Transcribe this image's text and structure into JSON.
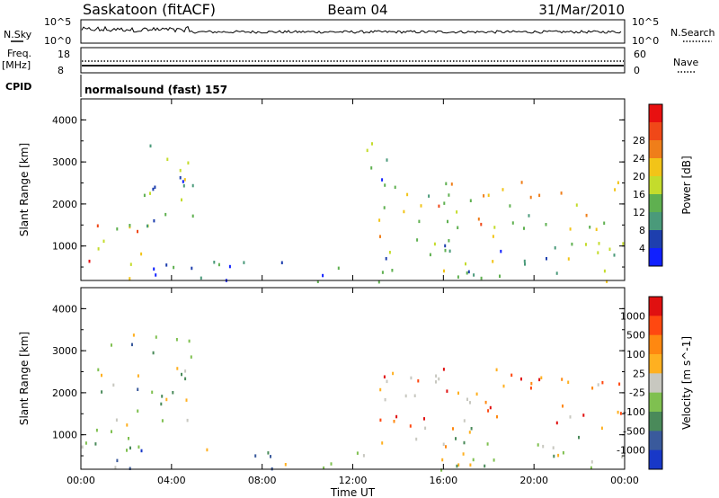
{
  "header": {
    "station": "Saskatoon (fitACF)",
    "beam": "Beam 04",
    "date": "31/Mar/2010"
  },
  "panels": {
    "nsky_label": "N.Sky",
    "nsearch_label": "N.Search",
    "nsky_ticks": [
      "10^5",
      "10^0"
    ],
    "freq_label": "Freq.",
    "freq_unit": "[MHz]",
    "freq_ticks": [
      "18",
      "8"
    ],
    "nave_label": "Nave",
    "nave_ticks": [
      "60",
      "0"
    ],
    "cpid_label": "CPID",
    "cpid_text": "normalsound (fast) 157"
  },
  "chart_data": [
    {
      "type": "heatmap",
      "quantity": "Power",
      "ylabel": "Slant Range [km]",
      "ylim": [
        180,
        4500
      ],
      "yticks": [
        1000,
        2000,
        3000,
        4000
      ],
      "xlim": [
        0,
        24
      ],
      "xticks": [
        "00:00",
        "04:00",
        "08:00",
        "12:00",
        "16:00",
        "20:00",
        "00:00"
      ],
      "colorbar": {
        "label": "Power [dB]",
        "ticks": [
          "4",
          "8",
          "12",
          "16",
          "20",
          "24",
          "28"
        ],
        "colors": [
          "#1020ff",
          "#1e3fae",
          "#4a9a7a",
          "#5fb050",
          "#c4dc2c",
          "#f2c418",
          "#ef7e1a",
          "#f04818",
          "#e81010"
        ]
      },
      "regions": [
        {
          "t": [
            0,
            3.2
          ],
          "r": [
            180,
            1200
          ],
          "level": 0.75
        },
        {
          "t": [
            0.5,
            3.0
          ],
          "r": [
            1100,
            1900
          ],
          "level": 0.6
        },
        {
          "t": [
            2.5,
            5.0
          ],
          "r": [
            1500,
            3500
          ],
          "level": 0.35
        },
        {
          "t": [
            3.0,
            13.0
          ],
          "r": [
            180,
            700
          ],
          "level": 0.2
        },
        {
          "t": [
            13.0,
            24.0
          ],
          "r": [
            180,
            1200
          ],
          "level": 0.35
        },
        {
          "t": [
            13.0,
            24.0
          ],
          "r": [
            1200,
            2600
          ],
          "level": 0.55
        },
        {
          "t": [
            12.5,
            14.0
          ],
          "r": [
            2500,
            3500
          ],
          "level": 0.3
        }
      ]
    },
    {
      "type": "heatmap",
      "quantity": "Velocity",
      "ylabel": "Slant Range [km]",
      "ylim": [
        180,
        4500
      ],
      "yticks": [
        1000,
        2000,
        3000,
        4000
      ],
      "xlim": [
        0,
        24
      ],
      "xticks": [
        "00:00",
        "04:00",
        "08:00",
        "12:00",
        "16:00",
        "20:00",
        "00:00"
      ],
      "xlabel": "Time UT",
      "colorbar": {
        "label": "Velocity [m s^-1]",
        "ticks": [
          "1000",
          "500",
          "100",
          "25",
          "-25",
          "-100",
          "-500",
          "-1000"
        ],
        "colors": [
          "#1838c8",
          "#3a5a9c",
          "#4a8a5a",
          "#7fc050",
          "#c8c8c0",
          "#ffb020",
          "#ff8810",
          "#ff4810",
          "#e01010"
        ]
      },
      "regions": [
        {
          "t": [
            0,
            3.2
          ],
          "r": [
            180,
            1200
          ],
          "level": 0.3
        },
        {
          "t": [
            0.5,
            5.0
          ],
          "r": [
            1200,
            3500
          ],
          "level": 0.45
        },
        {
          "t": [
            3.0,
            13.0
          ],
          "r": [
            180,
            700
          ],
          "level": 0.35
        },
        {
          "t": [
            13.0,
            24.0
          ],
          "r": [
            1200,
            2600
          ],
          "level": 0.7
        },
        {
          "t": [
            13.0,
            24.0
          ],
          "r": [
            180,
            1200
          ],
          "level": 0.5
        }
      ]
    }
  ]
}
